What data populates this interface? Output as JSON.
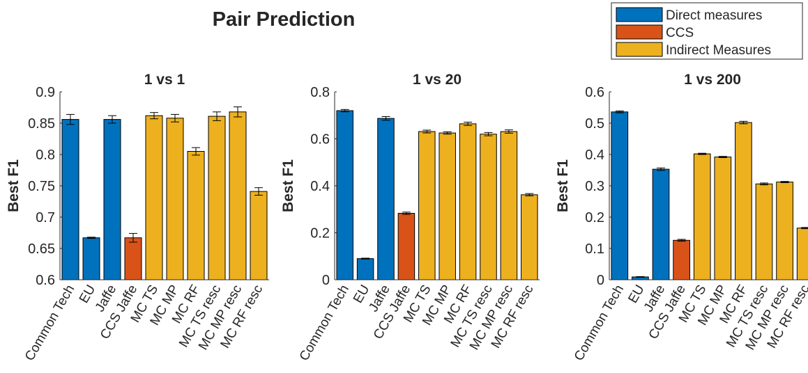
{
  "figure": {
    "title": "Pair Prediction",
    "legend": {
      "placement": "top-right",
      "entries": [
        {
          "label": "Direct measures",
          "color": "#0072BD"
        },
        {
          "label": "CCS",
          "color": "#D95319"
        },
        {
          "label": "Indirect Measures",
          "color": "#EDB120"
        }
      ]
    }
  },
  "chart_data": [
    {
      "type": "bar",
      "title": "1 vs 1",
      "ylabel": "Best F1",
      "xlabel": "",
      "ylim": [
        0.6,
        0.9
      ],
      "yticks": [
        0.6,
        0.65,
        0.7,
        0.75,
        0.8,
        0.85,
        0.9
      ],
      "ytick_labels": [
        "0.6",
        "0.65",
        "0.7",
        "0.75",
        "0.8",
        "0.85",
        "0.9"
      ],
      "categories": [
        "Common Tech",
        "EU",
        "Jaffe",
        "CCS Jaffe",
        "MC TS",
        "MC MP",
        "MC RF",
        "MC TS resc",
        "MC MP resc",
        "MC RF resc"
      ],
      "values": [
        0.856,
        0.667,
        0.856,
        0.667,
        0.862,
        0.858,
        0.805,
        0.861,
        0.868,
        0.741
      ],
      "errors": [
        0.008,
        0.001,
        0.006,
        0.007,
        0.005,
        0.006,
        0.006,
        0.007,
        0.008,
        0.006
      ],
      "groups": [
        "Direct measures",
        "Direct measures",
        "Direct measures",
        "CCS",
        "Indirect Measures",
        "Indirect Measures",
        "Indirect Measures",
        "Indirect Measures",
        "Indirect Measures",
        "Indirect Measures"
      ],
      "grid": false
    },
    {
      "type": "bar",
      "title": "1 vs 20",
      "ylabel": "Best F1",
      "xlabel": "",
      "ylim": [
        0,
        0.8
      ],
      "yticks": [
        0,
        0.2,
        0.4,
        0.6,
        0.8
      ],
      "ytick_labels": [
        "0",
        "0.2",
        "0.4",
        "0.6",
        "0.8"
      ],
      "categories": [
        "Common Tech",
        "EU",
        "Jaffe",
        "CCS Jaffe",
        "MC TS",
        "MC MP",
        "MC RF",
        "MC TS resc",
        "MC MP resc",
        "MC RF resc"
      ],
      "values": [
        0.72,
        0.09,
        0.687,
        0.283,
        0.631,
        0.625,
        0.664,
        0.62,
        0.631,
        0.362
      ],
      "errors": [
        0.005,
        0.002,
        0.008,
        0.005,
        0.006,
        0.005,
        0.007,
        0.007,
        0.007,
        0.005
      ],
      "groups": [
        "Direct measures",
        "Direct measures",
        "Direct measures",
        "CCS",
        "Indirect Measures",
        "Indirect Measures",
        "Indirect Measures",
        "Indirect Measures",
        "Indirect Measures",
        "Indirect Measures"
      ],
      "grid": false
    },
    {
      "type": "bar",
      "title": "1 vs 200",
      "ylabel": "Best F1",
      "xlabel": "",
      "ylim": [
        0,
        0.6
      ],
      "yticks": [
        0,
        0.1,
        0.2,
        0.3,
        0.4,
        0.5,
        0.6
      ],
      "ytick_labels": [
        "0",
        "0.1",
        "0.2",
        "0.3",
        "0.4",
        "0.5",
        "0.6"
      ],
      "categories": [
        "Common Tech",
        "EU",
        "Jaffe",
        "CCS Jaffe",
        "MC TS",
        "MC MP",
        "MC RF",
        "MC TS resc",
        "MC MP resc",
        "MC RF resc"
      ],
      "values": [
        0.536,
        0.009,
        0.353,
        0.126,
        0.402,
        0.392,
        0.502,
        0.306,
        0.312,
        0.165
      ],
      "errors": [
        0.003,
        0.001,
        0.004,
        0.003,
        0.002,
        0.002,
        0.004,
        0.003,
        0.002,
        0.002
      ],
      "groups": [
        "Direct measures",
        "Direct measures",
        "Direct measures",
        "CCS",
        "Indirect Measures",
        "Indirect Measures",
        "Indirect Measures",
        "Indirect Measures",
        "Indirect Measures",
        "Indirect Measures"
      ],
      "grid": false
    }
  ]
}
